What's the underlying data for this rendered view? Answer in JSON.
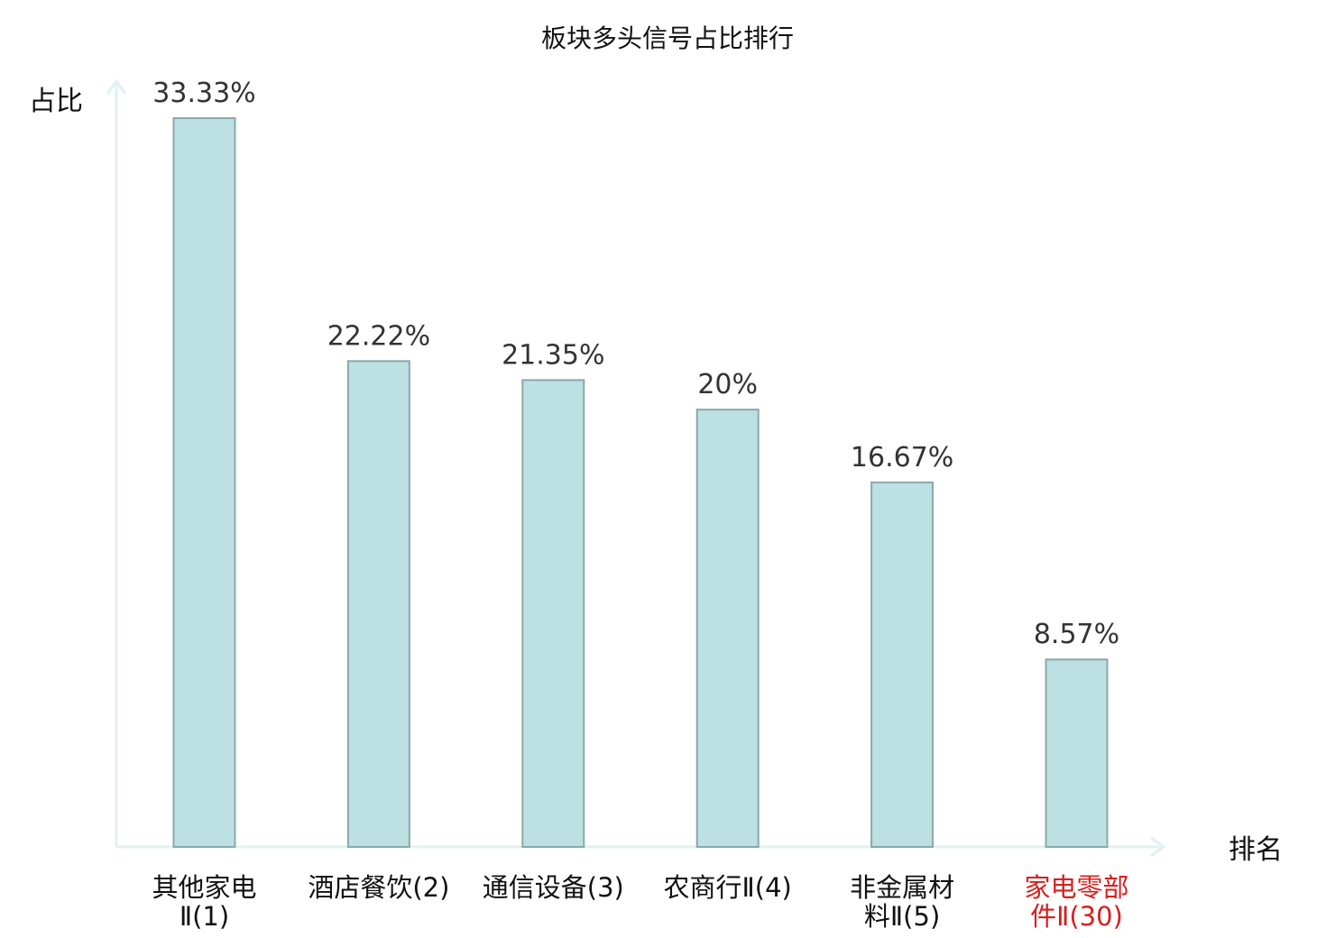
{
  "chart_data": {
    "type": "bar",
    "title": "板块多头信号占比排行",
    "ylabel": "占比",
    "xlabel": "排名",
    "ylim": [
      0,
      34
    ],
    "grid": false,
    "categories": [
      [
        "其他家电",
        "Ⅱ(1)"
      ],
      [
        "酒店餐饮(2)"
      ],
      [
        "通信设备(3)"
      ],
      [
        "农商行Ⅱ(4)"
      ],
      [
        "非金属材",
        "料Ⅱ(5)"
      ],
      [
        "家电零部",
        "件Ⅱ(30)"
      ]
    ],
    "values": [
      33.33,
      22.22,
      21.35,
      20,
      16.67,
      8.57
    ],
    "value_labels": [
      "33.33%",
      "22.22%",
      "21.35%",
      "20%",
      "16.67%",
      "8.57%"
    ],
    "highlight_index": 5,
    "colors": {
      "bar_fill": "#bde0e3",
      "bar_stroke": "#8aa9ab",
      "axis": "#e0f2f0",
      "label": "#111111",
      "value_label": "#333333",
      "highlight": "#d91e1e"
    }
  }
}
